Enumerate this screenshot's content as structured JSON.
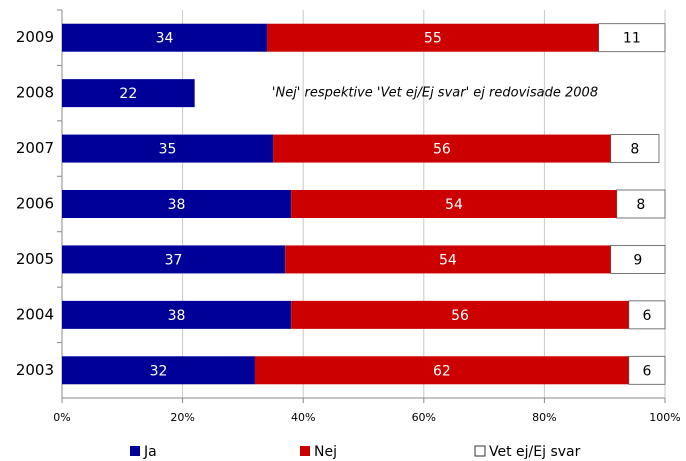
{
  "chart_data": {
    "type": "stacked-bar-horizontal",
    "categories": [
      "2009",
      "2008",
      "2007",
      "2006",
      "2005",
      "2004",
      "2003"
    ],
    "series": [
      {
        "name": "Ja",
        "color": "#000099",
        "values": [
          34,
          22,
          35,
          38,
          37,
          38,
          32
        ]
      },
      {
        "name": "Nej",
        "color": "#cc0000",
        "values": [
          55,
          null,
          56,
          54,
          54,
          56,
          62
        ]
      },
      {
        "name": "Vet ej/Ej svar",
        "color": "#ffffff",
        "values": [
          11,
          null,
          8,
          8,
          9,
          6,
          6
        ]
      }
    ],
    "xlim": [
      0,
      100
    ],
    "xticks": [
      {
        "value": 0,
        "label": "0%"
      },
      {
        "value": 20,
        "label": "20%"
      },
      {
        "value": 40,
        "label": "40%"
      },
      {
        "value": 60,
        "label": "60%"
      },
      {
        "value": 80,
        "label": "80%"
      },
      {
        "value": 100,
        "label": "100%"
      }
    ],
    "grid": true,
    "annotation": "'Nej' respektive 'Vet ej/Ej svar' ej redovisade 2008",
    "legend": "bottom"
  }
}
